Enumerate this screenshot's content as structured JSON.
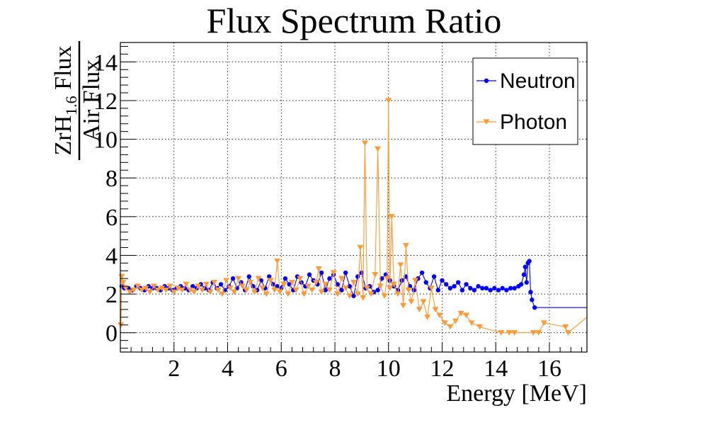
{
  "chart_data": {
    "type": "line",
    "title": "Flux Spectrum Ratio",
    "xlabel": "Energy [MeV]",
    "ylabel": {
      "numerator_main": "ZrH",
      "numerator_sub": "1.6",
      "numerator_rest": " Flux",
      "denominator": "Air Flux"
    },
    "xlim": [
      0.0,
      17.4
    ],
    "ylim": [
      -1.0,
      15.0
    ],
    "x_ticks": [
      2,
      4,
      6,
      8,
      10,
      12,
      14,
      16
    ],
    "y_ticks": [
      0,
      2,
      4,
      6,
      8,
      10,
      12,
      14
    ],
    "grid": true,
    "legend_position": "top-right",
    "series": [
      {
        "name": "Neutron",
        "color": "#0000ff",
        "marker": "circle",
        "x": [
          0.05,
          0.15,
          0.3,
          0.45,
          0.6,
          0.75,
          0.9,
          1.05,
          1.2,
          1.35,
          1.5,
          1.65,
          1.8,
          1.95,
          2.1,
          2.25,
          2.4,
          2.55,
          2.7,
          2.85,
          3.0,
          3.15,
          3.3,
          3.45,
          3.6,
          3.75,
          3.9,
          4.05,
          4.2,
          4.35,
          4.5,
          4.65,
          4.8,
          4.95,
          5.1,
          5.25,
          5.4,
          5.55,
          5.7,
          5.85,
          6.0,
          6.15,
          6.3,
          6.45,
          6.6,
          6.75,
          6.9,
          7.05,
          7.2,
          7.35,
          7.5,
          7.65,
          7.8,
          7.95,
          8.1,
          8.25,
          8.4,
          8.55,
          8.7,
          8.85,
          9.0,
          9.15,
          9.3,
          9.45,
          9.6,
          9.75,
          9.9,
          10.05,
          10.2,
          10.35,
          10.5,
          10.65,
          10.8,
          10.95,
          11.1,
          11.25,
          11.4,
          11.55,
          11.7,
          11.85,
          12.0,
          12.15,
          12.3,
          12.45,
          12.6,
          12.75,
          12.9,
          13.05,
          13.2,
          13.35,
          13.5,
          13.65,
          13.8,
          13.95,
          14.1,
          14.25,
          14.4,
          14.55,
          14.7,
          14.85,
          14.95,
          15.05,
          15.1,
          15.15,
          15.2,
          15.25,
          15.3,
          15.35,
          15.45,
          17.4
        ],
        "y": [
          2.4,
          2.3,
          2.3,
          2.2,
          2.4,
          2.3,
          2.2,
          2.4,
          2.3,
          2.3,
          2.2,
          2.4,
          2.3,
          2.2,
          2.3,
          2.4,
          2.3,
          2.2,
          2.4,
          2.3,
          2.5,
          2.3,
          2.2,
          2.6,
          2.3,
          2.5,
          2.2,
          2.4,
          2.8,
          2.3,
          2.6,
          2.2,
          2.9,
          2.4,
          2.2,
          2.7,
          2.3,
          2.9,
          2.5,
          2.4,
          2.3,
          2.8,
          2.5,
          2.2,
          2.9,
          2.6,
          2.4,
          3.0,
          2.7,
          2.5,
          3.1,
          2.2,
          2.8,
          3.0,
          2.5,
          2.2,
          3.1,
          2.4,
          1.9,
          2.9,
          3.1,
          2.3,
          2.4,
          2.1,
          2.2,
          2.8,
          3.0,
          2.7,
          2.4,
          2.2,
          2.7,
          2.9,
          2.4,
          2.2,
          2.8,
          3.1,
          2.6,
          2.3,
          2.9,
          2.2,
          2.7,
          2.5,
          2.3,
          2.4,
          2.6,
          2.2,
          2.5,
          2.3,
          2.2,
          2.4,
          2.3,
          2.3,
          2.2,
          2.3,
          2.2,
          2.3,
          2.2,
          2.3,
          2.3,
          2.4,
          2.5,
          3.0,
          3.4,
          2.6,
          3.6,
          3.7,
          2.1,
          1.7,
          1.3,
          1.3
        ]
      },
      {
        "name": "Photon",
        "color": "#ff9933",
        "marker": "triangle-down",
        "x": [
          0.02,
          0.05,
          0.1,
          0.2,
          0.35,
          0.5,
          0.65,
          0.8,
          0.95,
          1.1,
          1.25,
          1.4,
          1.55,
          1.7,
          1.85,
          2.0,
          2.15,
          2.3,
          2.45,
          2.6,
          2.75,
          2.9,
          3.05,
          3.2,
          3.35,
          3.5,
          3.65,
          3.8,
          3.95,
          4.1,
          4.25,
          4.4,
          4.55,
          4.7,
          4.85,
          5.0,
          5.15,
          5.3,
          5.45,
          5.6,
          5.75,
          5.85,
          5.95,
          6.1,
          6.25,
          6.4,
          6.55,
          6.7,
          6.85,
          7.0,
          7.15,
          7.3,
          7.4,
          7.5,
          7.65,
          7.8,
          7.95,
          8.1,
          8.25,
          8.4,
          8.55,
          8.7,
          8.85,
          8.95,
          9.05,
          9.12,
          9.2,
          9.35,
          9.5,
          9.6,
          9.7,
          9.85,
          9.95,
          10.0,
          10.05,
          10.12,
          10.2,
          10.35,
          10.45,
          10.55,
          10.65,
          10.75,
          10.85,
          11.0,
          11.15,
          11.3,
          11.45,
          11.6,
          11.75,
          11.9,
          12.1,
          12.3,
          12.5,
          12.7,
          12.9,
          13.1,
          13.4,
          14.2,
          14.5,
          14.7,
          15.4,
          15.6,
          15.8,
          16.6,
          16.7,
          17.4
        ],
        "y": [
          0.4,
          2.9,
          2.6,
          2.3,
          2.1,
          2.2,
          2.4,
          2.2,
          2.3,
          2.1,
          2.4,
          2.2,
          2.3,
          2.2,
          2.4,
          2.1,
          2.3,
          2.2,
          2.5,
          2.2,
          2.1,
          2.4,
          2.2,
          2.5,
          2.1,
          2.6,
          2.2,
          2.0,
          2.7,
          2.3,
          2.1,
          2.8,
          2.4,
          2.2,
          2.6,
          2.1,
          2.8,
          2.3,
          2.0,
          2.7,
          2.2,
          3.7,
          2.1,
          2.5,
          2.0,
          2.6,
          2.2,
          2.8,
          2.0,
          2.4,
          2.2,
          2.6,
          3.3,
          2.1,
          2.5,
          2.2,
          3.1,
          2.0,
          2.8,
          2.3,
          1.9,
          2.6,
          2.0,
          4.4,
          1.8,
          9.8,
          2.3,
          2.0,
          3.0,
          9.5,
          2.4,
          1.9,
          2.8,
          12.0,
          2.3,
          6.0,
          2.5,
          2.0,
          3.5,
          1.4,
          4.5,
          2.2,
          1.6,
          2.7,
          1.2,
          1.6,
          0.8,
          2.3,
          1.2,
          0.9,
          0.5,
          0.3,
          0.6,
          1.0,
          0.9,
          0.5,
          0.3,
          0.0,
          0.0,
          0.0,
          0.0,
          0.0,
          0.5,
          0.3,
          0.0,
          0.8
        ]
      }
    ]
  }
}
